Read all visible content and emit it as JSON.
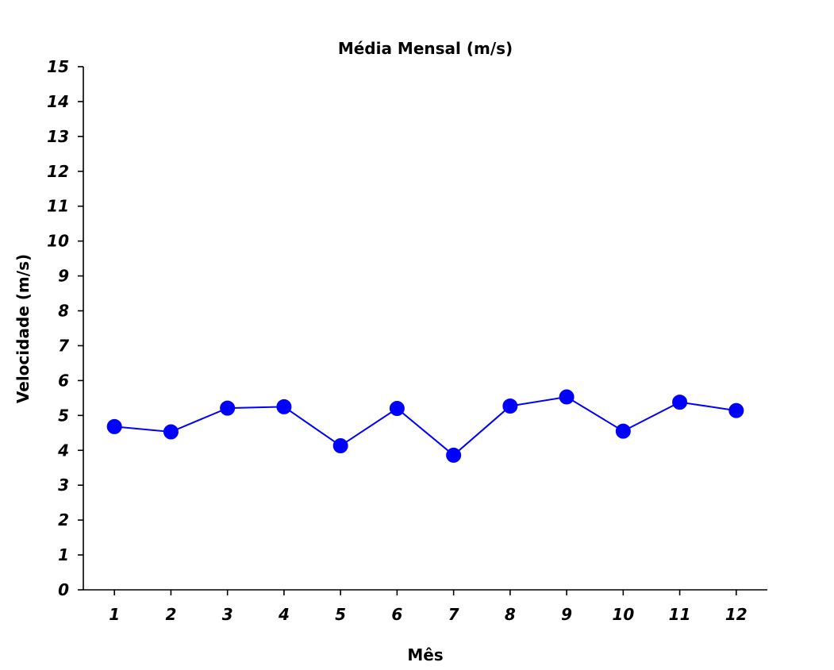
{
  "chart_data": {
    "type": "line",
    "title": "Média Mensal (m/s)",
    "xlabel": "Mês",
    "ylabel": "Velocidade (m/s)",
    "x": [
      1,
      2,
      3,
      4,
      5,
      6,
      7,
      8,
      9,
      10,
      11,
      12
    ],
    "x_tick_labels": [
      "1",
      "2",
      "3",
      "4",
      "5",
      "6",
      "7",
      "8",
      "9",
      "10",
      "11",
      "12"
    ],
    "y_ticks": [
      0,
      1,
      2,
      3,
      4,
      5,
      6,
      7,
      8,
      9,
      10,
      11,
      12,
      13,
      14,
      15
    ],
    "y_tick_labels": [
      "0",
      "1",
      "2",
      "3",
      "4",
      "5",
      "6",
      "7",
      "8",
      "9",
      "10",
      "11",
      "12",
      "13",
      "14",
      "15"
    ],
    "ylim": [
      0,
      15
    ],
    "xlim": [
      0.45,
      12.55
    ],
    "grid": false,
    "series": [
      {
        "values": [
          4.68,
          4.53,
          5.21,
          5.25,
          4.13,
          5.2,
          3.86,
          5.27,
          5.53,
          4.55,
          5.38,
          5.14
        ],
        "color": "#0000ff",
        "marker": "circle"
      }
    ]
  }
}
